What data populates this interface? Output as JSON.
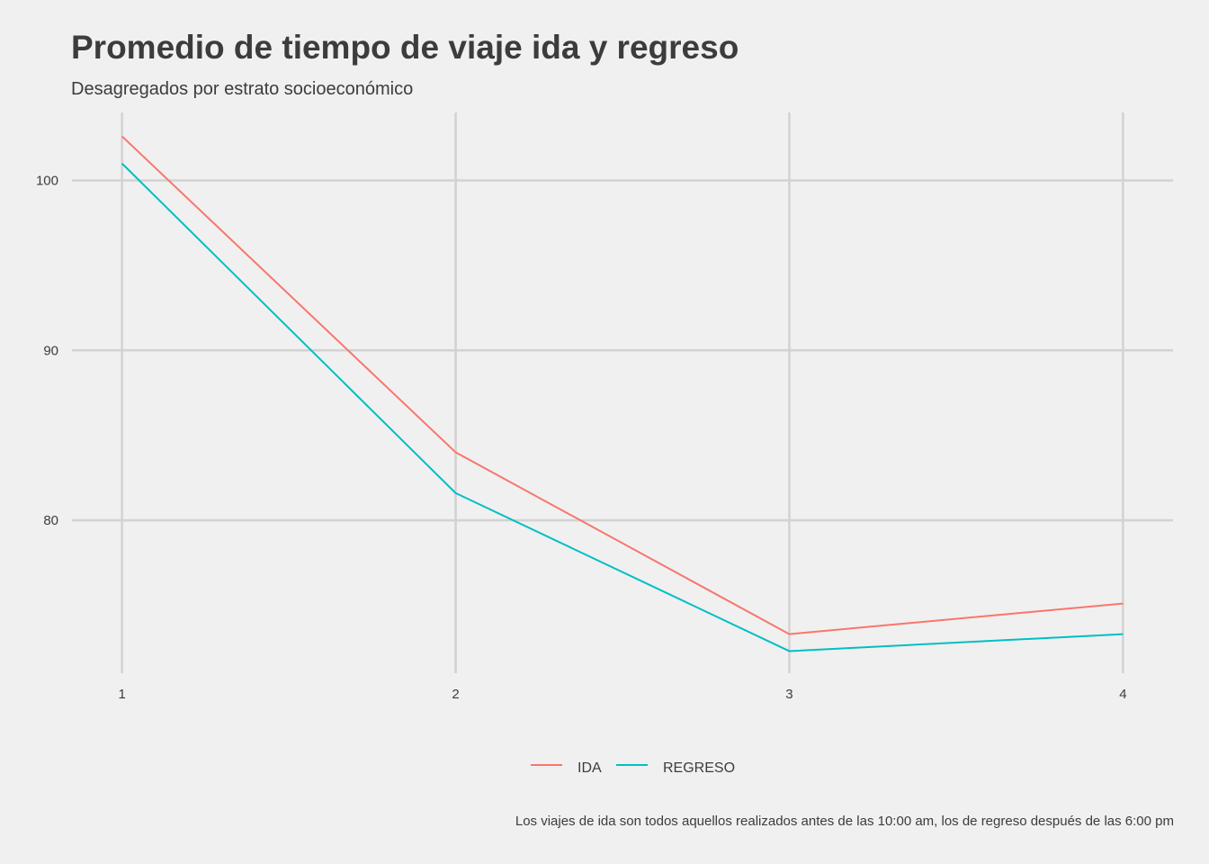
{
  "chart_data": {
    "type": "line",
    "title": "Promedio de tiempo de viaje ida y regreso",
    "subtitle": "Desagregados por estrato socioeconómico",
    "caption": "Los viajes de ida son todos aquellos realizados antes de las 10:00 am, los de regreso después de las 6:00 pm",
    "x": [
      1,
      2,
      3,
      4
    ],
    "x_ticks": [
      "1",
      "2",
      "3",
      "4"
    ],
    "y_ticks": [
      80,
      90,
      100
    ],
    "ylim": [
      71,
      104
    ],
    "xlim": [
      0.85,
      4.15
    ],
    "grid": true,
    "legend_position": "bottom",
    "series": [
      {
        "name": "IDA",
        "color": "#f8766d",
        "values": [
          102.6,
          84.0,
          73.3,
          75.1
        ]
      },
      {
        "name": "REGRESO",
        "color": "#00bfc4",
        "values": [
          101.0,
          81.6,
          72.3,
          73.3
        ]
      }
    ]
  }
}
